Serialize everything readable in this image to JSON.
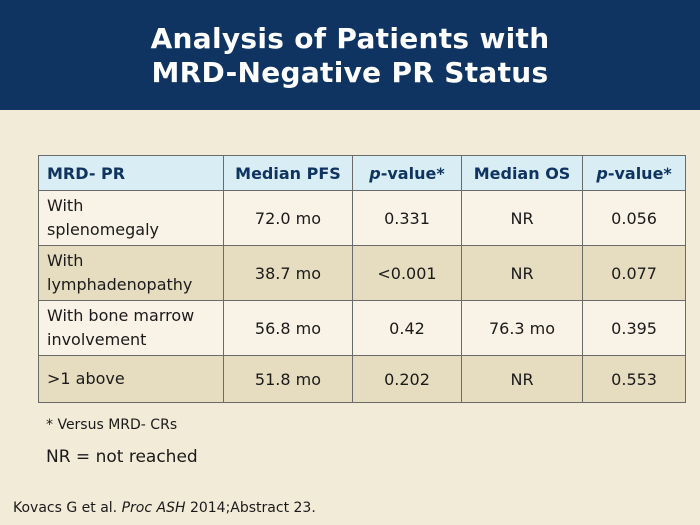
{
  "slide": {
    "title_line1": "Analysis of Patients with",
    "title_line2": "MRD-Negative PR Status"
  },
  "table": {
    "headers": {
      "group": "MRD- PR",
      "pfs": "Median PFS",
      "pfs_p_italic": "p",
      "pfs_p_rest": "-value*",
      "os": "Median OS",
      "os_p_italic": "p",
      "os_p_rest": "-value*"
    },
    "rows": [
      {
        "line1": "With",
        "line2": "splenomegaly",
        "pfs": "72.0 mo",
        "pfs_p": "0.331",
        "os": "NR",
        "os_p": "0.056"
      },
      {
        "line1": "With",
        "line2": "lymphadenopathy",
        "pfs": "38.7 mo",
        "pfs_p": "<0.001",
        "os": "NR",
        "os_p": "0.077"
      },
      {
        "line1": "With bone marrow",
        "line2": "involvement",
        "pfs": "56.8 mo",
        "pfs_p": "0.42",
        "os": "76.3 mo",
        "os_p": "0.395"
      },
      {
        "line1": ">1 above",
        "line2": "",
        "pfs": "51.8 mo",
        "pfs_p": "0.202",
        "os": "NR",
        "os_p": "0.553"
      }
    ]
  },
  "footnotes": {
    "asterisk": "* Versus MRD- CRs",
    "nr": "NR = not reached"
  },
  "citation": {
    "authors": "Kovacs G et al.",
    "journal": "Proc ASH",
    "rest": "2014;Abstract 23."
  }
}
